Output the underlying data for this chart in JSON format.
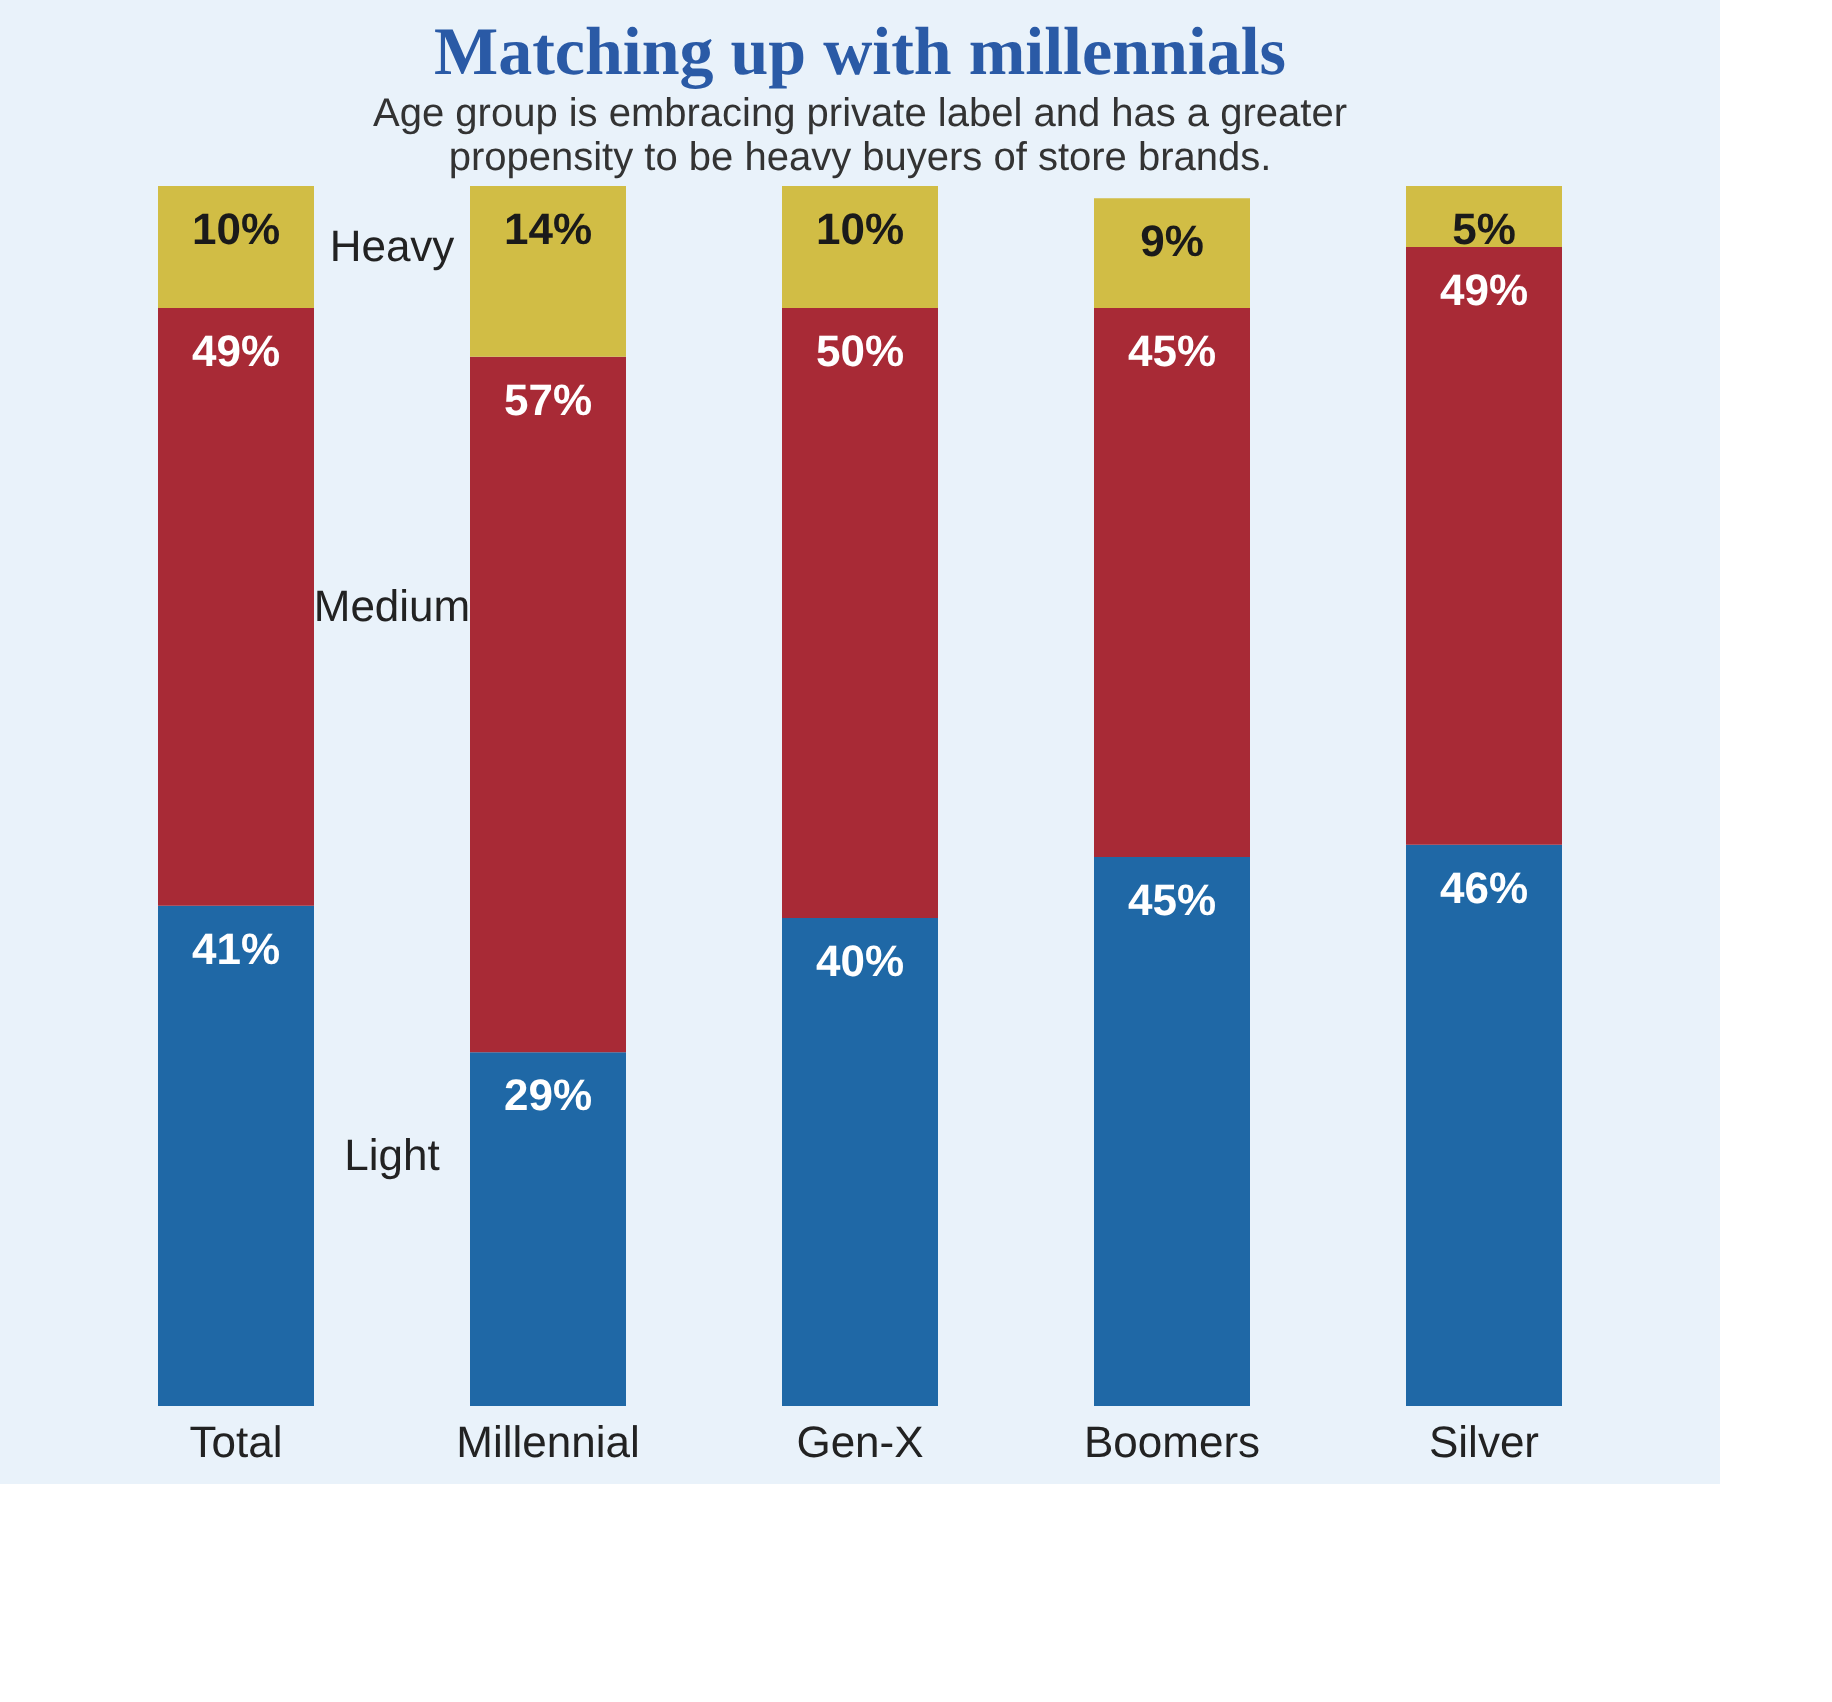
{
  "chart_data": {
    "type": "bar",
    "stacked": true,
    "title": "Matching up with millennials",
    "subtitle": "Age group is embracing private label and has a greater propensity to be heavy buyers of store brands.",
    "categories": [
      "Total",
      "Millennial",
      "Gen-X",
      "Boomers",
      "Silver"
    ],
    "series": [
      {
        "name": "Light",
        "color": "#1f68a6",
        "values": [
          41,
          29,
          40,
          45,
          46
        ],
        "value_labels": [
          "41%",
          "29%",
          "40%",
          "45%",
          "46%"
        ]
      },
      {
        "name": "Medium",
        "color": "#a82a36",
        "values": [
          49,
          57,
          50,
          45,
          49
        ],
        "value_labels": [
          "49%",
          "57%",
          "50%",
          "45%",
          "49%"
        ]
      },
      {
        "name": "Heavy",
        "color": "#d1bd45",
        "values": [
          10,
          14,
          10,
          9,
          5
        ],
        "value_labels": [
          "10%",
          "14%",
          "10%",
          "9%",
          "5%"
        ]
      }
    ]
  }
}
